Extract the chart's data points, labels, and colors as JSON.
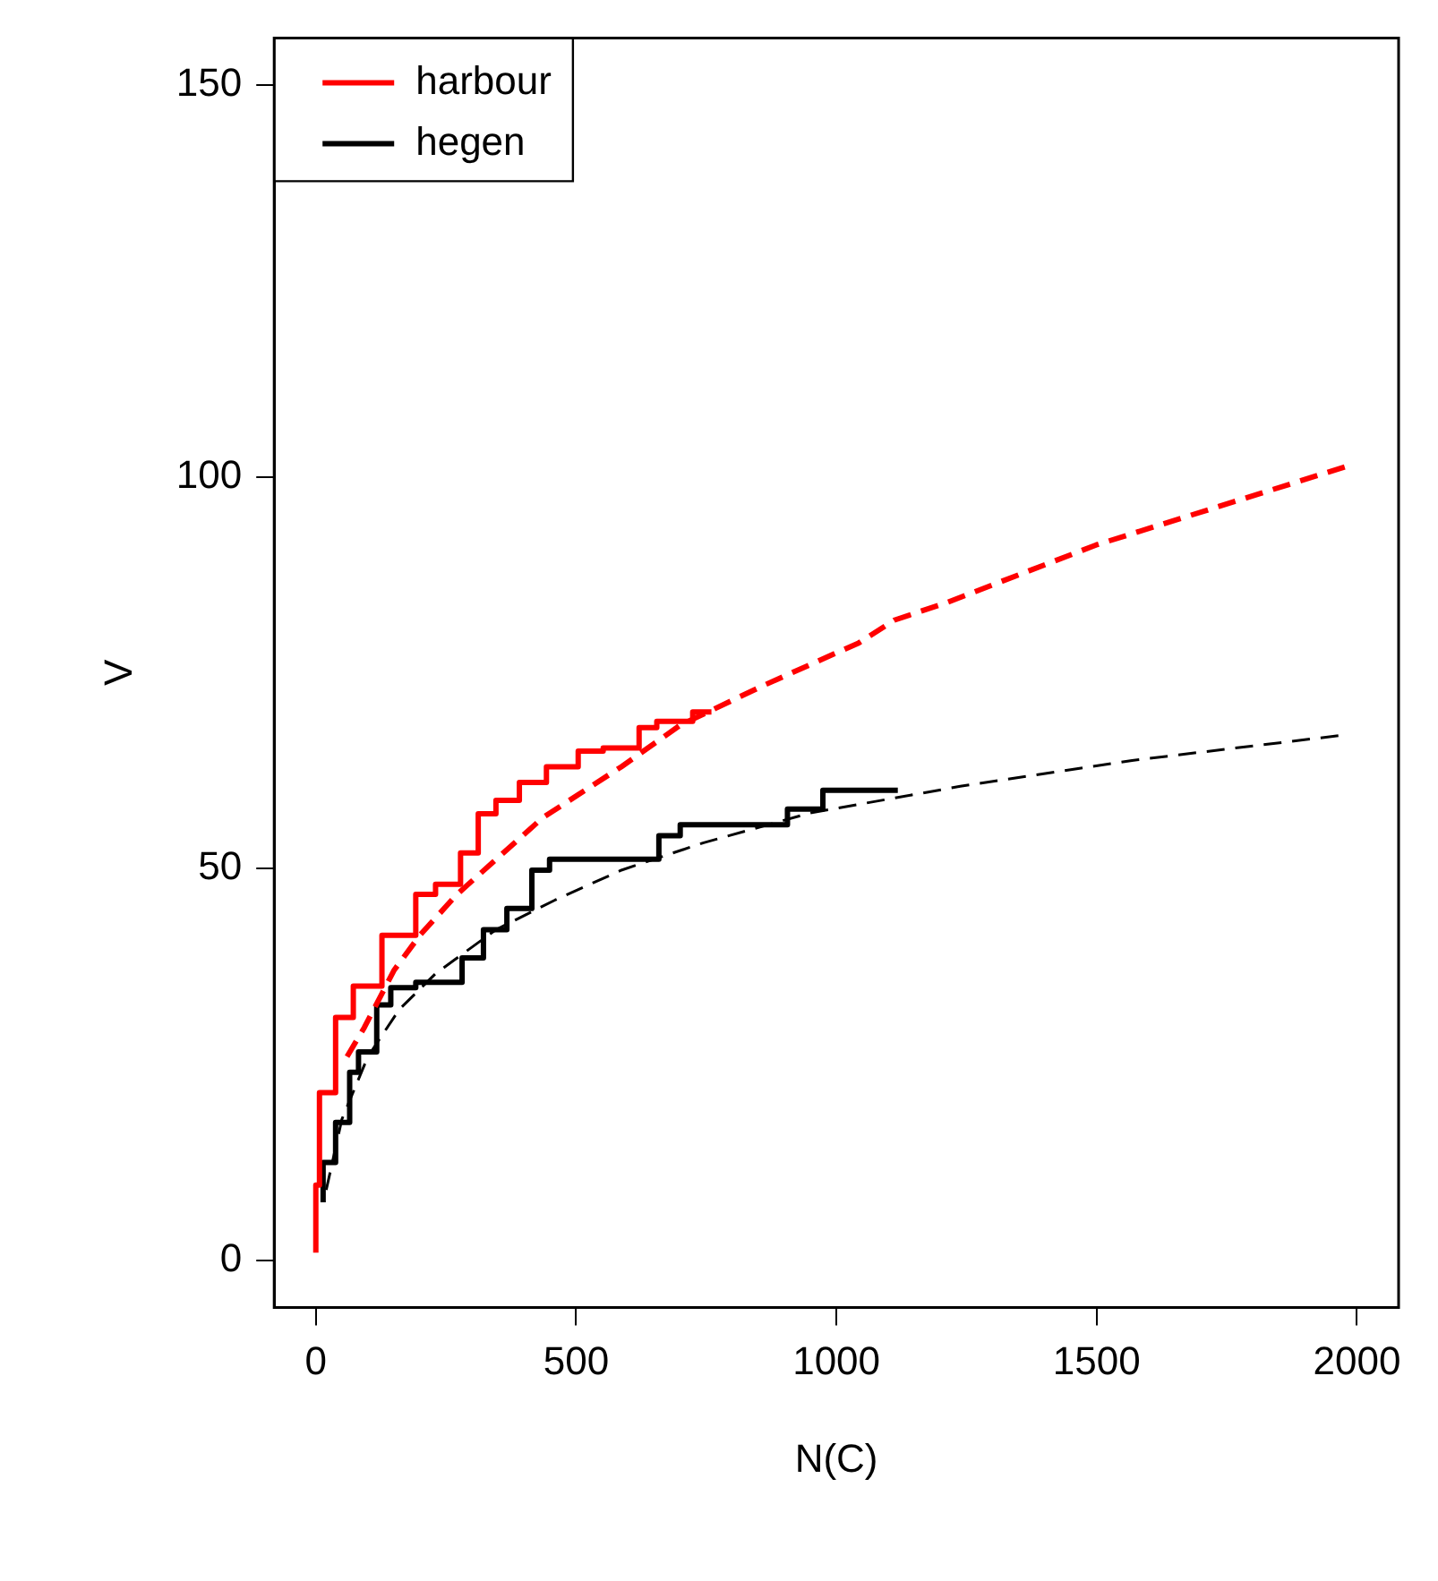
{
  "chart_data": {
    "type": "line",
    "xlabel": "N(C)",
    "ylabel": "V",
    "xlim": [
      -80,
      2080
    ],
    "ylim": [
      -6,
      156
    ],
    "xticks": [
      0,
      500,
      1000,
      1500,
      2000
    ],
    "yticks": [
      0,
      50,
      100,
      150
    ],
    "grid": false,
    "legend": "top left",
    "series": [
      {
        "name": "harbour",
        "type": "step",
        "color": "#ff0000",
        "line_style": "solid",
        "x": [
          0,
          7,
          38,
          72,
          127,
          192,
          230,
          278,
          312,
          346,
          391,
          443,
          504,
          552,
          621,
          655,
          724,
          760
        ],
        "values": [
          1,
          9.6,
          21.4,
          31,
          35,
          41.5,
          46.7,
          48,
          52,
          57,
          58.7,
          61,
          63,
          65,
          65.4,
          68,
          68.8,
          70
        ]
      },
      {
        "type": "line",
        "color": "#ff0000",
        "line_style": "dashed",
        "x": [
          60,
          93,
          150,
          200,
          271,
          436,
          587,
          700,
          861,
          1043,
          1111,
          1214,
          1499,
          1993
        ],
        "values": [
          26,
          29.7,
          37,
          41.5,
          46.7,
          56.5,
          63,
          68.3,
          73.4,
          78.8,
          81.7,
          84,
          91.3,
          101.6
        ]
      },
      {
        "name": "hegen",
        "type": "step",
        "color": "#000000",
        "line_style": "solid",
        "x": [
          14,
          38,
          65,
          82,
          117,
          144,
          192,
          281,
          322,
          367,
          415,
          449,
          470,
          659,
          700,
          758,
          906,
          974,
          1019,
          1118
        ],
        "values": [
          7.4,
          12.5,
          17.6,
          24,
          26.6,
          32.6,
          34.8,
          35.5,
          38.6,
          42.2,
          44.9,
          49.8,
          51.2,
          51.2,
          54.2,
          55.6,
          55.6,
          57.6,
          60,
          60
        ]
      },
      {
        "type": "line",
        "color": "#000000",
        "line_style": "dashed",
        "x": [
          20,
          50,
          100,
          160,
          230,
          346,
          460,
          587,
          745,
          950,
          1238,
          1568,
          1969
        ],
        "values": [
          9,
          18,
          26,
          32,
          36.6,
          42.2,
          46,
          49.8,
          53.3,
          57.1,
          60.5,
          63.8,
          67
        ]
      }
    ]
  }
}
